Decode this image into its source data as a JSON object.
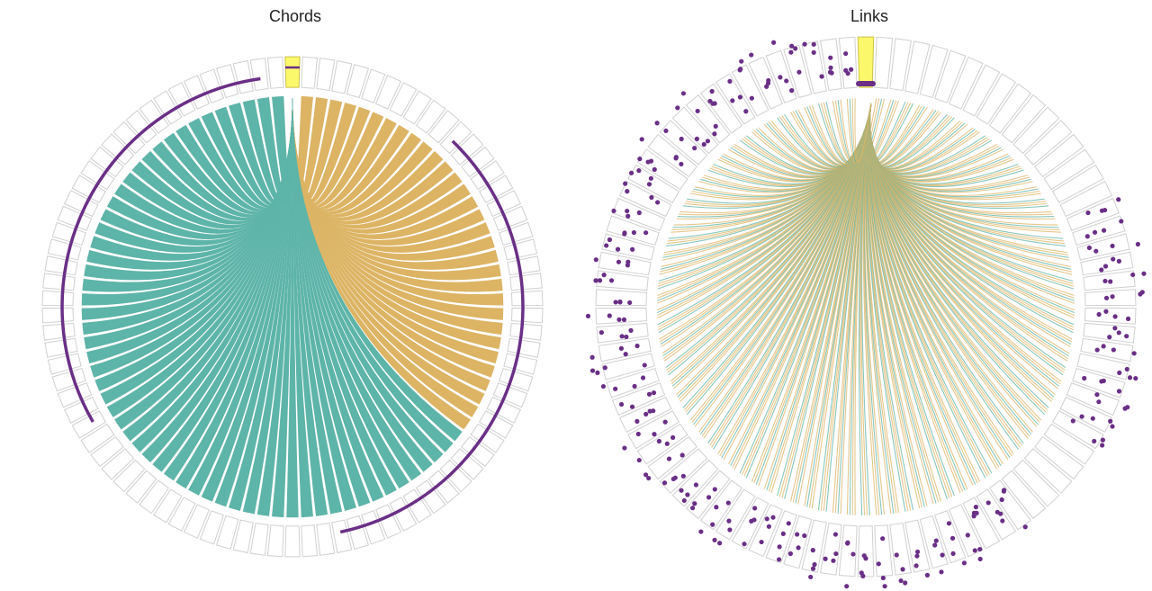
{
  "chart_data": [
    {
      "type": "chord",
      "title": "Chords",
      "n_segments": 90,
      "highlighted_segment": 0,
      "colors": {
        "segment_stroke": "#d0d0d0",
        "highlight_fill": "#fcf86b",
        "highlight_stroke": "#c9c24a",
        "chord_left": "#5db4a8",
        "chord_right": "#dcb464",
        "track": "#6a2f86"
      },
      "chord_groups": [
        {
          "color_key": "chord_right",
          "start_segment": 1,
          "end_segment": 31
        },
        {
          "color_key": "chord_left",
          "start_segment": 32,
          "end_segment": 89
        }
      ],
      "track_arcs": [
        {
          "start_segment": 60,
          "end_segment": 88
        },
        {
          "start_segment": 11,
          "end_segment": 42
        }
      ]
    },
    {
      "type": "links",
      "title": "Links",
      "n_segments": 90,
      "highlighted_segment": 0,
      "colors": {
        "segment_stroke": "#d0d0d0",
        "highlight_fill": "#fcf86b",
        "highlight_stroke": "#c9c24a",
        "link_a": "#5db4a8",
        "link_b": "#dcb464",
        "dots": "#6a2f86"
      },
      "links_per_segment": 4,
      "dot_segments": {
        "start": 17,
        "end": 89
      },
      "dots_per_segment": 4
    }
  ]
}
